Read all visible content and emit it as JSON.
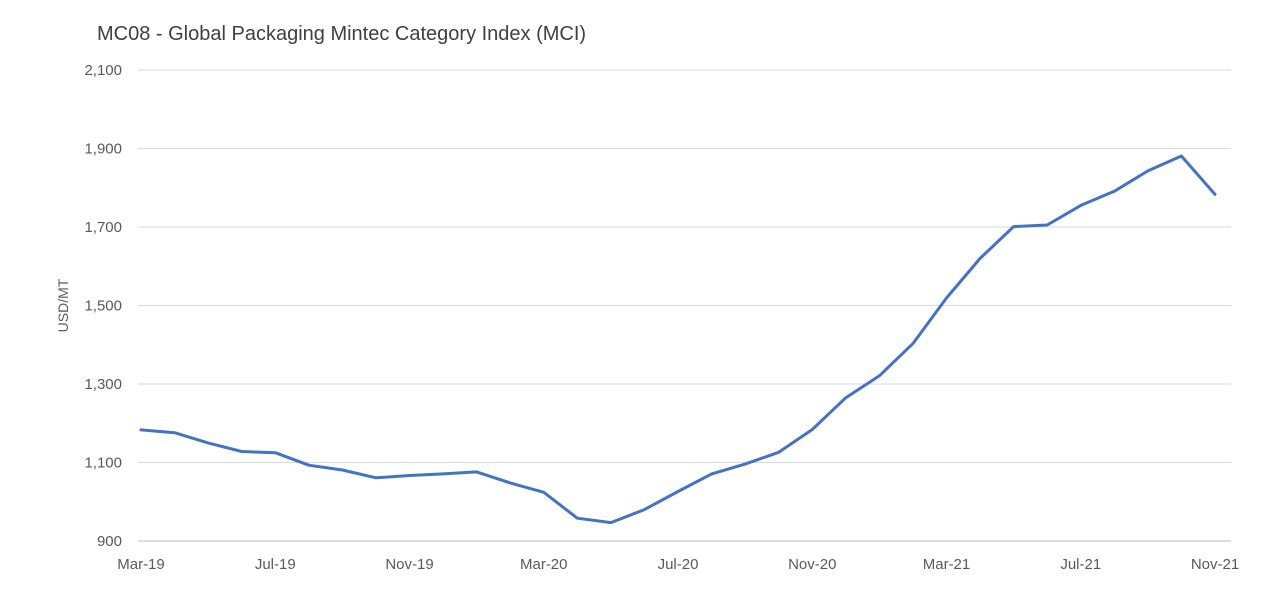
{
  "chart_data": {
    "type": "line",
    "title": "MC08 - Global Packaging Mintec Category Index (MCI)",
    "xlabel": "",
    "ylabel": "USD/MT",
    "ylim": [
      900,
      2100
    ],
    "yticks": [
      900,
      1100,
      1300,
      1500,
      1700,
      1900,
      2100
    ],
    "ytick_labels": [
      "900",
      "1,100",
      "1,300",
      "1,500",
      "1,700",
      "1,900",
      "2,100"
    ],
    "x": [
      "Mar-19",
      "Apr-19",
      "May-19",
      "Jun-19",
      "Jul-19",
      "Aug-19",
      "Sep-19",
      "Oct-19",
      "Nov-19",
      "Dec-19",
      "Jan-20",
      "Feb-20",
      "Mar-20",
      "Apr-20",
      "May-20",
      "Jun-20",
      "Jul-20",
      "Aug-20",
      "Sep-20",
      "Oct-20",
      "Nov-20",
      "Dec-20",
      "Jan-21",
      "Feb-21",
      "Mar-21",
      "Apr-21",
      "May-21",
      "Jun-21",
      "Jul-21",
      "Aug-21",
      "Sep-21",
      "Oct-21",
      "Nov-21"
    ],
    "xtick_labels": [
      "Mar-19",
      "Jul-19",
      "Nov-19",
      "Mar-20",
      "Jul-20",
      "Nov-20",
      "Mar-21",
      "Jul-21",
      "Nov-21"
    ],
    "series": [
      {
        "name": "",
        "color": "#4472c4",
        "values": [
          1183,
          1176,
          1150,
          1128,
          1125,
          1093,
          1081,
          1061,
          1067,
          1071,
          1076,
          1048,
          1024,
          958,
          947,
          980,
          1026,
          1071,
          1096,
          1126,
          1184,
          1265,
          1321,
          1403,
          1519,
          1620,
          1701,
          1705,
          1755,
          1791,
          1843,
          1881,
          1783
        ]
      }
    ],
    "grid": true,
    "legend": "none"
  }
}
